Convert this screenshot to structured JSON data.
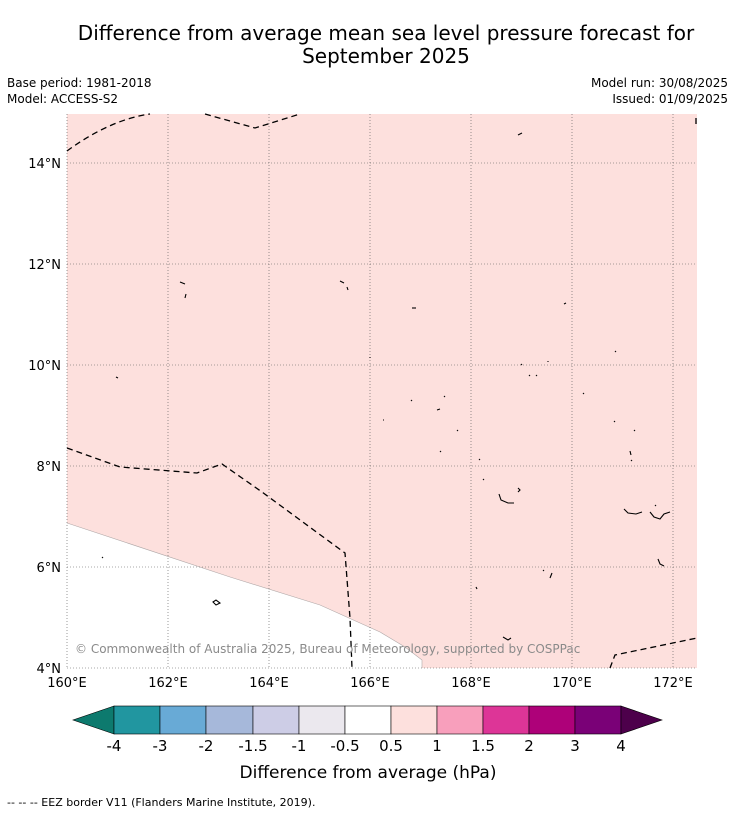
{
  "title_line1": "Difference from average mean sea level pressure forecast for",
  "title_line2": "September 2025",
  "base_period": "Base period: 1981-2018",
  "model": "Model: ACCESS-S2",
  "model_run": "Model run: 30/08/2025",
  "issued": "Issued: 01/09/2025",
  "copyright": "© Commonwealth of Australia 2025, Bureau of Meteorology, supported by COSPPac",
  "lat_labels": [
    "14°N",
    "12°N",
    "10°N",
    "8°N",
    "6°N",
    "4°N"
  ],
  "lon_labels": [
    "160°E",
    "162°E",
    "164°E",
    "166°E",
    "168°E",
    "170°E",
    "172°E"
  ],
  "colorbar": {
    "ticks": [
      "-4",
      "-3",
      "-2",
      "-1.5",
      "-1",
      "-0.5",
      "0.5",
      "1",
      "1.5",
      "2",
      "3",
      "4"
    ],
    "colors": [
      "#0d7a6e",
      "#2196a0",
      "#68aad6",
      "#a6b8da",
      "#cdcde6",
      "#ebe8ee",
      "#ffffff",
      "#fde0dd",
      "#f89fbc",
      "#dd3597",
      "#ae0179",
      "#7a0177",
      "#4d004b"
    ],
    "label": "Difference from average (hPa)"
  },
  "fill_colors": {
    "positive_0_5_to_1": "#fde0dd",
    "neutral": "#ffffff"
  },
  "footer_legend": "--  --  -- EEZ border V11 (Flanders Marine Institute, 2019)."
}
